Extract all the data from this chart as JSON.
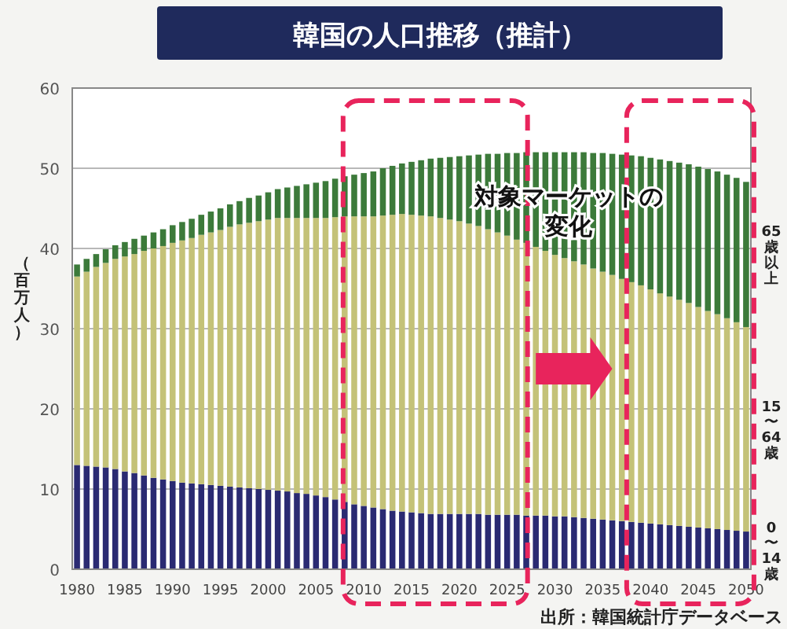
{
  "chart_data": {
    "type": "bar",
    "stacked": true,
    "title": "韓国の人口推移（推計）",
    "ylabel": "（百万人）",
    "categories": [
      "1980",
      null,
      null,
      null,
      null,
      "1985",
      null,
      null,
      null,
      null,
      "1990",
      null,
      null,
      null,
      null,
      "1995",
      null,
      null,
      null,
      null,
      "2000",
      null,
      null,
      null,
      null,
      "2005",
      null,
      null,
      null,
      null,
      "2010",
      null,
      null,
      null,
      null,
      "2015",
      null,
      null,
      null,
      null,
      "2020",
      null,
      null,
      null,
      null,
      "2025",
      null,
      null,
      null,
      null,
      "2030",
      null,
      null,
      null,
      null,
      "2035",
      null,
      null,
      null,
      null,
      "2040",
      null,
      null,
      null,
      null,
      "2045",
      null,
      null,
      null,
      null,
      "2050"
    ],
    "series": [
      {
        "name": "0〜14歳",
        "color": "#2a2a72",
        "values": [
          13.0,
          12.9,
          12.8,
          12.7,
          12.5,
          12.2,
          12.0,
          11.7,
          11.4,
          11.2,
          11.0,
          10.8,
          10.7,
          10.6,
          10.5,
          10.4,
          10.3,
          10.2,
          10.1,
          10.0,
          9.9,
          9.8,
          9.7,
          9.5,
          9.4,
          9.2,
          9.0,
          8.7,
          8.4,
          8.1,
          7.9,
          7.7,
          7.5,
          7.3,
          7.2,
          7.1,
          7.0,
          6.9,
          6.9,
          6.9,
          6.9,
          6.9,
          6.9,
          6.8,
          6.8,
          6.8,
          6.8,
          6.7,
          6.7,
          6.7,
          6.6,
          6.6,
          6.5,
          6.4,
          6.3,
          6.2,
          6.1,
          6.0,
          5.9,
          5.8,
          5.7,
          5.6,
          5.5,
          5.4,
          5.3,
          5.2,
          5.1,
          5.0,
          4.9,
          4.8,
          4.7
        ]
      },
      {
        "name": "15〜64歳",
        "color": "#c4c278",
        "values": [
          23.5,
          24.2,
          24.9,
          25.5,
          26.2,
          26.8,
          27.3,
          28.0,
          28.6,
          29.1,
          29.7,
          30.2,
          30.6,
          31.1,
          31.5,
          31.9,
          32.4,
          32.8,
          33.1,
          33.4,
          33.7,
          34.0,
          34.1,
          34.3,
          34.4,
          34.6,
          34.8,
          35.2,
          35.6,
          35.9,
          36.1,
          36.3,
          36.6,
          36.9,
          37.1,
          37.1,
          37.1,
          37.1,
          36.9,
          36.7,
          36.5,
          36.2,
          35.9,
          35.6,
          35.2,
          34.8,
          34.3,
          34.0,
          33.5,
          33.0,
          32.6,
          32.2,
          31.9,
          31.6,
          31.2,
          30.9,
          30.6,
          30.2,
          29.9,
          29.6,
          29.2,
          28.8,
          28.5,
          28.2,
          27.9,
          27.5,
          27.1,
          26.8,
          26.4,
          26.0,
          25.5
        ]
      },
      {
        "name": "65歳以上",
        "color": "#3c7a3a",
        "values": [
          1.5,
          1.6,
          1.6,
          1.7,
          1.7,
          1.8,
          1.9,
          1.9,
          2.0,
          2.1,
          2.2,
          2.3,
          2.4,
          2.5,
          2.6,
          2.7,
          2.8,
          2.9,
          3.1,
          3.2,
          3.4,
          3.6,
          3.8,
          4.0,
          4.2,
          4.4,
          4.6,
          4.8,
          5.0,
          5.2,
          5.4,
          5.6,
          5.9,
          6.1,
          6.3,
          6.6,
          6.9,
          7.2,
          7.5,
          7.8,
          8.1,
          8.5,
          8.9,
          9.4,
          9.8,
          10.3,
          10.8,
          11.3,
          11.8,
          12.3,
          12.8,
          13.2,
          13.6,
          14.0,
          14.4,
          14.8,
          15.1,
          15.5,
          15.8,
          16.1,
          16.4,
          16.7,
          16.9,
          17.1,
          17.3,
          17.5,
          17.7,
          17.8,
          17.9,
          18.0,
          18.1
        ]
      }
    ],
    "ylim": [
      0,
      60
    ],
    "yticks": [
      0,
      10,
      20,
      30,
      40,
      50,
      60
    ],
    "grid": "y",
    "annotations": [
      "対象マーケットの変化",
      "出所：韓国統計庁データベース"
    ]
  }
}
